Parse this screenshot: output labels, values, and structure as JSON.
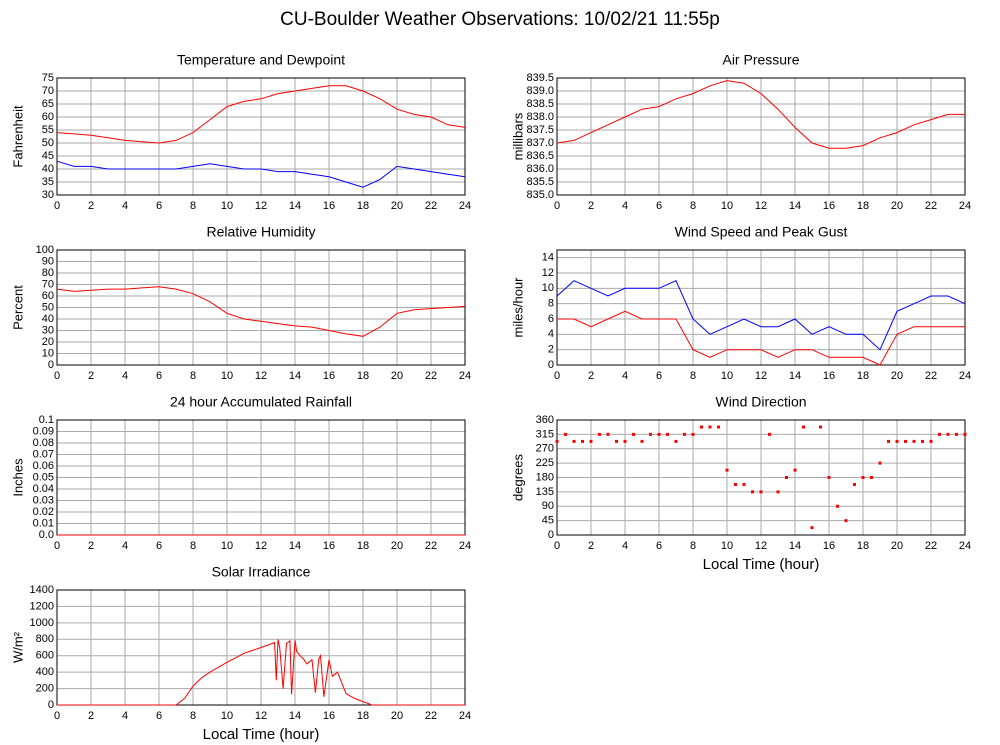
{
  "title": "CU-Boulder Weather Observations: 10/02/21 11:55p",
  "chart_data": [
    {
      "type": "line",
      "title": "Temperature and Dewpoint",
      "ylabel": "Fahrenheit",
      "x": [
        0,
        1,
        2,
        3,
        4,
        5,
        6,
        7,
        8,
        9,
        10,
        11,
        12,
        13,
        14,
        15,
        16,
        17,
        18,
        19,
        20,
        21,
        22,
        23,
        24
      ],
      "series": [
        {
          "color": "#ff0000",
          "values": [
            54,
            53.5,
            53,
            52,
            51,
            50.5,
            50,
            51,
            54,
            59,
            64,
            66,
            67,
            69,
            70,
            71,
            72,
            72,
            70,
            67,
            63,
            61,
            60,
            57,
            56
          ]
        },
        {
          "color": "#0000ff",
          "values": [
            43,
            41,
            41,
            40,
            40,
            40,
            40,
            40,
            41,
            42,
            41,
            40,
            40,
            39,
            39,
            38,
            37,
            35,
            33,
            36,
            41,
            40,
            39,
            38,
            37
          ]
        }
      ],
      "xlim": [
        0,
        24
      ],
      "xticks": [
        0,
        2,
        4,
        6,
        8,
        10,
        12,
        14,
        16,
        18,
        20,
        22,
        24
      ],
      "ylim": [
        30,
        75
      ],
      "yticks": [
        30,
        35,
        40,
        45,
        50,
        55,
        60,
        65,
        70,
        75
      ],
      "grid": true
    },
    {
      "type": "line",
      "title": "Air Pressure",
      "ylabel": "millibars",
      "x": [
        0,
        1,
        2,
        3,
        4,
        5,
        6,
        7,
        8,
        9,
        10,
        11,
        12,
        13,
        14,
        15,
        16,
        17,
        18,
        19,
        20,
        21,
        22,
        23,
        24
      ],
      "series": [
        {
          "color": "#ff0000",
          "values": [
            837.0,
            837.1,
            837.4,
            837.7,
            838.0,
            838.3,
            838.4,
            838.7,
            838.9,
            839.2,
            839.4,
            839.3,
            838.9,
            838.3,
            837.6,
            837.0,
            836.8,
            836.8,
            836.9,
            837.2,
            837.4,
            837.7,
            837.9,
            838.1,
            838.1
          ]
        }
      ],
      "xlim": [
        0,
        24
      ],
      "xticks": [
        0,
        2,
        4,
        6,
        8,
        10,
        12,
        14,
        16,
        18,
        20,
        22,
        24
      ],
      "ylim": [
        835,
        839.5
      ],
      "yticks": [
        {
          "value": 835,
          "label": "835.0"
        },
        835.5,
        {
          "value": 836,
          "label": "836.0"
        },
        836.5,
        {
          "value": 837,
          "label": "837.0"
        },
        837.5,
        {
          "value": 838,
          "label": "838.0"
        },
        838.5,
        {
          "value": 839,
          "label": "839.0"
        },
        839.5
      ],
      "grid": true
    },
    {
      "type": "line",
      "title": "Relative Humidity",
      "ylabel": "Percent",
      "x": [
        0,
        1,
        2,
        3,
        4,
        5,
        6,
        7,
        8,
        9,
        10,
        11,
        12,
        13,
        14,
        15,
        16,
        17,
        18,
        19,
        20,
        21,
        22,
        23,
        24
      ],
      "series": [
        {
          "color": "#ff0000",
          "values": [
            66,
            64,
            65,
            66,
            66,
            67,
            68,
            66,
            62,
            55,
            45,
            40,
            38,
            36,
            34,
            33,
            30,
            27,
            25,
            33,
            45,
            48,
            49,
            50,
            51
          ]
        }
      ],
      "xlim": [
        0,
        24
      ],
      "xticks": [
        0,
        2,
        4,
        6,
        8,
        10,
        12,
        14,
        16,
        18,
        20,
        22,
        24
      ],
      "ylim": [
        0,
        100
      ],
      "yticks": [
        0,
        10,
        20,
        30,
        40,
        50,
        60,
        70,
        80,
        90,
        100
      ],
      "grid": true
    },
    {
      "type": "line",
      "title": "Wind Speed and Peak Gust",
      "ylabel": "miles/hour",
      "x": [
        0,
        1,
        2,
        3,
        4,
        5,
        6,
        7,
        8,
        9,
        10,
        11,
        12,
        13,
        14,
        15,
        16,
        17,
        18,
        19,
        20,
        21,
        22,
        23,
        24
      ],
      "series": [
        {
          "color": "#0000ff",
          "values": [
            9,
            11,
            10,
            9,
            10,
            10,
            10,
            11,
            6,
            4,
            5,
            6,
            5,
            5,
            6,
            4,
            5,
            4,
            4,
            2,
            7,
            8,
            9,
            9,
            8
          ]
        },
        {
          "color": "#ff0000",
          "values": [
            6,
            6,
            5,
            6,
            7,
            6,
            6,
            6,
            2,
            1,
            2,
            2,
            2,
            1,
            2,
            2,
            1,
            1,
            1,
            0,
            4,
            5,
            5,
            5,
            5
          ]
        }
      ],
      "xlim": [
        0,
        24
      ],
      "xticks": [
        0,
        2,
        4,
        6,
        8,
        10,
        12,
        14,
        16,
        18,
        20,
        22,
        24
      ],
      "ylim": [
        0,
        15
      ],
      "yticks": [
        0,
        2,
        4,
        6,
        8,
        10,
        12,
        14
      ],
      "grid": true
    },
    {
      "type": "line",
      "title": "24 hour Accumulated Rainfall",
      "ylabel": "Inches",
      "x": [
        0,
        24
      ],
      "series": [
        {
          "color": "#ff0000",
          "values": [
            0,
            0
          ]
        }
      ],
      "xlim": [
        0,
        24
      ],
      "xticks": [
        0,
        2,
        4,
        6,
        8,
        10,
        12,
        14,
        16,
        18,
        20,
        22,
        24
      ],
      "ylim": [
        0,
        0.1
      ],
      "yticks": [
        {
          "value": 0,
          "label": "0.0"
        },
        0.01,
        0.02,
        0.03,
        0.04,
        0.05,
        0.06,
        0.07,
        0.08,
        0.09,
        0.1
      ],
      "grid": true
    },
    {
      "type": "scatter",
      "title": "Wind Direction",
      "ylabel": "degrees",
      "xlabel": "Local Time (hour)",
      "x": [
        0,
        0.5,
        1,
        1.5,
        2,
        2.5,
        3,
        3.5,
        4,
        4.5,
        5,
        5.5,
        6,
        6.5,
        7,
        7.5,
        8,
        8.5,
        9,
        9.5,
        10,
        10.5,
        11,
        11.5,
        12,
        12.5,
        13,
        13.5,
        14,
        14.5,
        15,
        15.5,
        16,
        16.5,
        17,
        17.5,
        18,
        18.5,
        19,
        19.5,
        20,
        20.5,
        21,
        21.5,
        22,
        22.5,
        23,
        23.5,
        24
      ],
      "series": [
        {
          "color": "#ff0000",
          "values": [
            293,
            315,
            293,
            293,
            293,
            315,
            315,
            293,
            293,
            315,
            293,
            315,
            315,
            315,
            293,
            315,
            315,
            338,
            338,
            338,
            203,
            158,
            158,
            135,
            135,
            315,
            135,
            180,
            203,
            338,
            23,
            338,
            180,
            90,
            45,
            158,
            180,
            180,
            225,
            293,
            293,
            293,
            293,
            293,
            293,
            315,
            315,
            315,
            315
          ]
        }
      ],
      "xlim": [
        0,
        24
      ],
      "xticks": [
        0,
        2,
        4,
        6,
        8,
        10,
        12,
        14,
        16,
        18,
        20,
        22,
        24
      ],
      "ylim": [
        0,
        360
      ],
      "yticks": [
        0,
        45,
        90,
        135,
        180,
        225,
        270,
        315,
        360
      ],
      "grid": true
    },
    {
      "type": "line",
      "title": "Solar Irradiance",
      "ylabel": "W/m²",
      "xlabel": "Local Time (hour)",
      "x": [
        0,
        1,
        2,
        3,
        4,
        5,
        6,
        7,
        7.5,
        8,
        8.5,
        9,
        10,
        11,
        12,
        12.8,
        12.9,
        13,
        13.1,
        13.3,
        13.5,
        13.7,
        13.8,
        14,
        14.1,
        14.3,
        14.5,
        14.7,
        15,
        15.2,
        15.4,
        15.5,
        15.7,
        16,
        16.2,
        16.5,
        17,
        17.5,
        18,
        18.3,
        18.5,
        19,
        20,
        21,
        22,
        23,
        24
      ],
      "series": [
        {
          "color": "#ff0000",
          "values": [
            0,
            0,
            0,
            0,
            0,
            0,
            0,
            0,
            80,
            230,
            330,
            400,
            520,
            630,
            700,
            760,
            300,
            800,
            700,
            200,
            750,
            780,
            130,
            790,
            650,
            600,
            560,
            500,
            550,
            150,
            560,
            600,
            100,
            550,
            350,
            400,
            140,
            80,
            40,
            20,
            0,
            0,
            0,
            0,
            0,
            0,
            0
          ]
        }
      ],
      "xlim": [
        0,
        24
      ],
      "xticks": [
        0,
        2,
        4,
        6,
        8,
        10,
        12,
        14,
        16,
        18,
        20,
        22,
        24
      ],
      "ylim": [
        0,
        1400
      ],
      "yticks": [
        0,
        200,
        400,
        600,
        800,
        1000,
        1200,
        1400
      ],
      "grid": true
    }
  ]
}
